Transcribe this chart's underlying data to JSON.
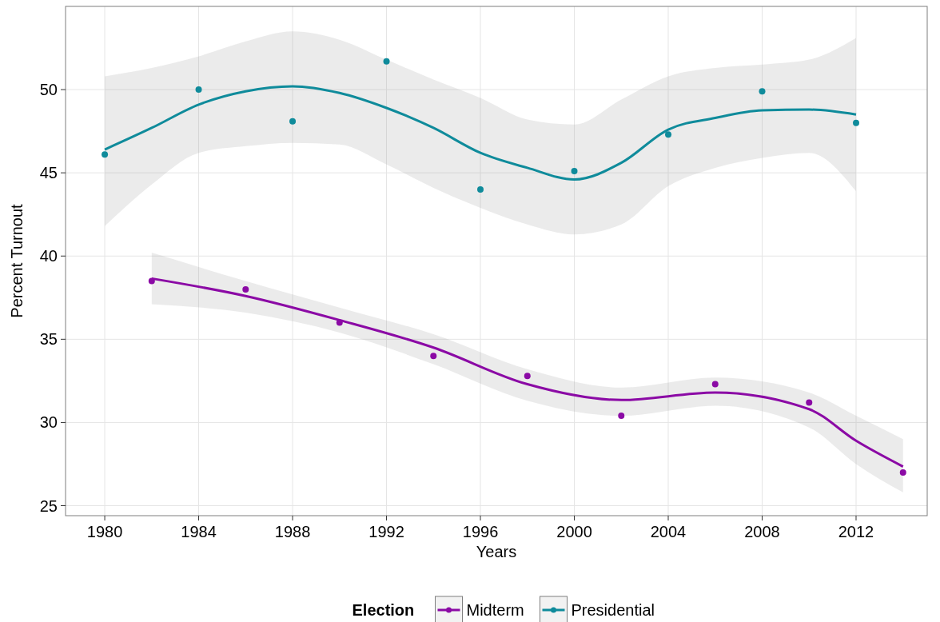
{
  "chart_data": {
    "type": "scatter",
    "xlabel": "Years",
    "ylabel": "Percent Turnout",
    "legend_title": "Election",
    "legend": "bottom",
    "grid": true,
    "marker": "circle",
    "xlim": [
      1978.33,
      2015.03
    ],
    "ylim": [
      24.4,
      55
    ],
    "xticks": [
      1980,
      1984,
      1988,
      1992,
      1996,
      2000,
      2004,
      2008,
      2012
    ],
    "yticks": [
      25,
      30,
      35,
      40,
      45,
      50
    ],
    "series": [
      {
        "type": "line",
        "marker": "none",
        "color": "#8b0aa5",
        "x": [
          1982,
          1986,
          1990,
          1994,
          1998,
          2002,
          2006,
          2010,
          2012,
          2014
        ],
        "values": [
          38.65,
          37.6,
          36.15,
          34.5,
          32.3,
          31.35,
          31.8,
          30.8,
          28.9,
          27.35
        ],
        "lower": [
          37.1,
          36.6,
          35.4,
          33.5,
          31.3,
          30.4,
          31.0,
          29.7,
          27.5,
          25.8
        ],
        "upper": [
          40.2,
          38.5,
          36.9,
          35.3,
          33.2,
          32.1,
          32.7,
          31.8,
          30.4,
          29.0
        ]
      },
      {
        "type": "line",
        "marker": "none",
        "color": "#0f8b9b",
        "x": [
          1980,
          1982,
          1984,
          1986,
          1988,
          1990,
          1992,
          1994,
          1996,
          1998,
          2000,
          2002,
          2004,
          2006,
          2008,
          2010,
          2012
        ],
        "values": [
          46.4,
          47.7,
          49.1,
          49.9,
          50.2,
          49.8,
          48.9,
          47.7,
          46.2,
          45.3,
          44.6,
          45.6,
          47.6,
          48.3,
          48.75,
          48.8,
          48.5
        ],
        "lower": [
          41.8,
          44.3,
          46.2,
          46.6,
          46.8,
          46.7,
          45.5,
          44.1,
          42.9,
          41.9,
          41.3,
          41.9,
          44.2,
          45.3,
          45.9,
          46.2,
          43.9
        ],
        "upper": [
          50.8,
          51.3,
          52.0,
          52.9,
          53.5,
          53.0,
          51.8,
          50.6,
          49.5,
          48.2,
          47.9,
          49.4,
          50.8,
          51.3,
          51.5,
          51.8,
          53.1
        ]
      },
      {
        "name": "Midterm",
        "color": "#8b0aa5",
        "x": [
          1982,
          1986,
          1990,
          1994,
          1998,
          2002,
          2006,
          2010,
          2014
        ],
        "values": [
          38.5,
          38.0,
          36.0,
          34.0,
          32.8,
          30.4,
          32.3,
          31.2,
          27.0
        ]
      },
      {
        "name": "Presidential",
        "color": "#0f8b9b",
        "x": [
          1980,
          1984,
          1988,
          1992,
          1996,
          2000,
          2004,
          2008,
          2012
        ],
        "values": [
          46.1,
          50.0,
          48.1,
          51.7,
          44.0,
          45.1,
          47.3,
          49.9,
          48.0
        ]
      }
    ]
  }
}
